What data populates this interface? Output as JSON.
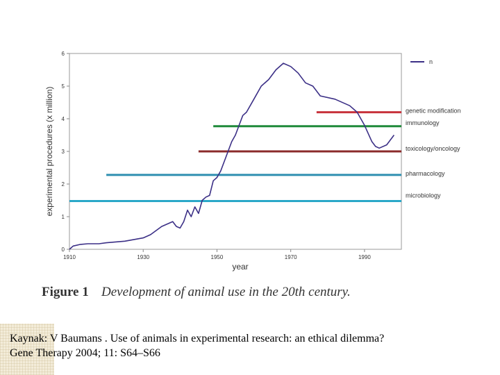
{
  "chart_data": {
    "type": "line",
    "xlabel": "year",
    "ylabel": "experimental procedures (x million)",
    "xlim": [
      1910,
      2000
    ],
    "ylim": [
      0,
      6
    ],
    "x_ticks": [
      1910,
      1930,
      1950,
      1970,
      1990
    ],
    "y_ticks": [
      0,
      1,
      2,
      3,
      4,
      5,
      6
    ],
    "legend": {
      "entries": [
        "n"
      ],
      "position": "top-right"
    },
    "series": [
      {
        "name": "n",
        "color": "#3b2f86",
        "x": [
          1910,
          1911,
          1913,
          1915,
          1918,
          1920,
          1925,
          1930,
          1932,
          1935,
          1938,
          1939,
          1940,
          1941,
          1942,
          1943,
          1944,
          1945,
          1946,
          1947,
          1948,
          1949,
          1950,
          1951,
          1952,
          1953,
          1954,
          1955,
          1956,
          1957,
          1958,
          1960,
          1962,
          1964,
          1966,
          1968,
          1970,
          1972,
          1974,
          1976,
          1978,
          1982,
          1986,
          1988,
          1990,
          1992,
          1993,
          1994,
          1996,
          1998
        ],
        "y": [
          0,
          0.1,
          0.15,
          0.17,
          0.17,
          0.2,
          0.25,
          0.35,
          0.45,
          0.7,
          0.85,
          0.7,
          0.65,
          0.85,
          1.2,
          1.0,
          1.3,
          1.1,
          1.5,
          1.6,
          1.65,
          2.1,
          2.2,
          2.4,
          2.7,
          3.0,
          3.3,
          3.5,
          3.8,
          4.1,
          4.2,
          4.6,
          5.0,
          5.2,
          5.5,
          5.7,
          5.6,
          5.4,
          5.1,
          5.0,
          4.7,
          4.6,
          4.4,
          4.2,
          3.8,
          3.3,
          3.15,
          3.1,
          3.2,
          3.5
        ]
      }
    ],
    "reference_lines": [
      {
        "label": "genetic modification",
        "value": 4.2,
        "x_start": 1977,
        "color": "#c8323c"
      },
      {
        "label": "immunology",
        "value": 3.77,
        "x_start": 1949,
        "color": "#1f8a3a"
      },
      {
        "label": "toxicology/oncology",
        "value": 3.0,
        "x_start": 1945,
        "color": "#8b2b2b"
      },
      {
        "label": "pharmacology",
        "value": 2.28,
        "x_start": 1920,
        "color": "#2e8fb0"
      },
      {
        "label": "microbiology",
        "value": 1.48,
        "x_start": 1910,
        "color": "#2aa8c8"
      }
    ],
    "caption": {
      "label": "Figure 1",
      "text": "Development of animal use in the 20th century."
    }
  },
  "reference": {
    "line1": "Kaynak: V Baumans . Use of animals in experimental research: an ethical dilemma?",
    "line2": "Gene Therapy 2004; 11: S64–S66"
  }
}
